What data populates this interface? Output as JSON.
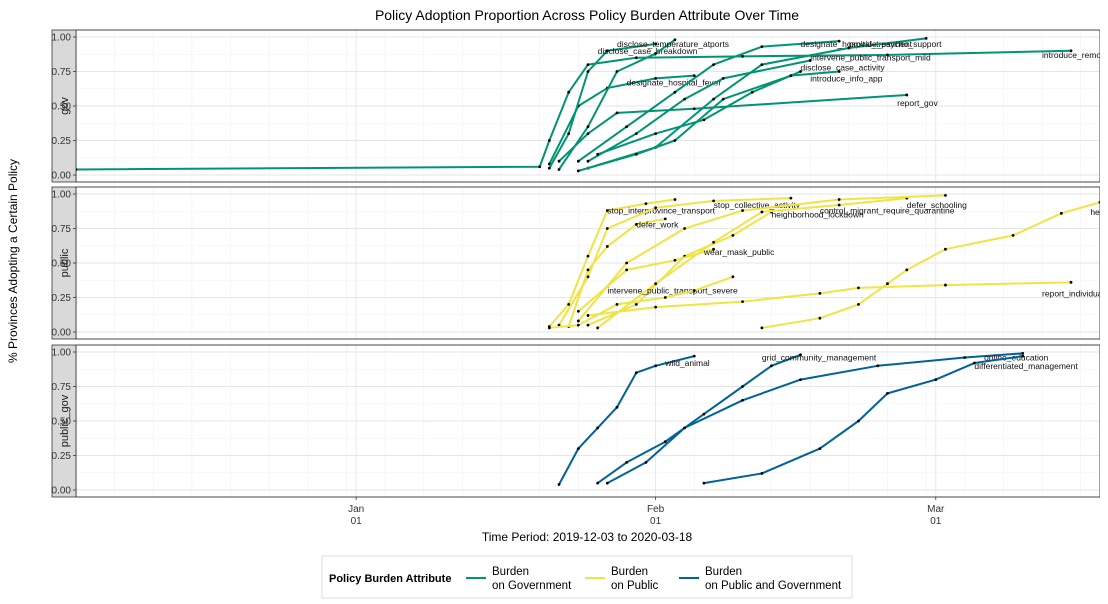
{
  "chart_data": {
    "type": "line",
    "title": "Policy Adoption Proportion Across Policy Burden Attribute Over Time",
    "xlabel": "Time Period: 2019-12-03 to 2020-03-18",
    "ylabel": "% Provinces Adopting a Certain Policy",
    "x_ticks": [
      {
        "date": "2020-01-01",
        "line1": "Jan",
        "line2": "01"
      },
      {
        "date": "2020-02-01",
        "line1": "Feb",
        "line2": "01"
      },
      {
        "date": "2020-03-01",
        "line1": "Mar",
        "line2": "01"
      }
    ],
    "xlim": [
      "2019-12-03",
      "2020-03-18"
    ],
    "ylim": [
      0,
      1
    ],
    "y_ticks": [
      "0.00",
      "0.25",
      "0.50",
      "0.75",
      "1.00"
    ],
    "grid": true,
    "legend_position": "bottom",
    "legend": {
      "title": "Policy Burden Attribute",
      "entries": [
        {
          "line1": "Burden",
          "line2": "on Government",
          "color": "#009473"
        },
        {
          "line1": "Burden",
          "line2": "on Public",
          "color": "#f0e442"
        },
        {
          "line1": "Burden",
          "line2": "on Public and Government",
          "color": "#00619b"
        }
      ]
    },
    "panels": [
      {
        "strip": "gov",
        "color": "#009473",
        "series": [
          {
            "label": "introduce_remote_medical_con",
            "label_at": [
              "2020-03-12",
              0.87
            ],
            "points": [
              [
                "2019-12-03",
                0.04
              ],
              [
                "2020-01-20",
                0.06
              ],
              [
                "2020-01-21",
                0.25
              ],
              [
                "2020-01-23",
                0.6
              ],
              [
                "2020-01-25",
                0.8
              ],
              [
                "2020-01-30",
                0.85
              ],
              [
                "2020-02-10",
                0.86
              ],
              [
                "2020-02-25",
                0.87
              ],
              [
                "2020-03-15",
                0.9
              ]
            ]
          },
          {
            "label": "report_gov",
            "label_at": [
              "2020-02-26",
              0.52
            ],
            "points": [
              [
                "2020-01-22",
                0.1
              ],
              [
                "2020-01-25",
                0.3
              ],
              [
                "2020-01-28",
                0.45
              ],
              [
                "2020-02-05",
                0.48
              ],
              [
                "2020-02-27",
                0.58
              ]
            ]
          },
          {
            "label": "designate_hospital_fever",
            "label_at": [
              "2020-01-29",
              0.67
            ],
            "points": [
              [
                "2020-01-21",
                0.08
              ],
              [
                "2020-01-24",
                0.5
              ],
              [
                "2020-01-27",
                0.63
              ],
              [
                "2020-02-01",
                0.7
              ],
              [
                "2020-02-05",
                0.72
              ]
            ]
          },
          {
            "label": "disclose_case_breakdown",
            "label_at": [
              "2020-01-26",
              0.9
            ],
            "points": [
              [
                "2020-01-21",
                0.05
              ],
              [
                "2020-01-23",
                0.3
              ],
              [
                "2020-01-25",
                0.75
              ],
              [
                "2020-01-27",
                0.9
              ],
              [
                "2020-02-01",
                0.95
              ]
            ]
          },
          {
            "label": "disclose_temperature_atports",
            "label_at": [
              "2020-01-28",
              0.95
            ],
            "points": [
              [
                "2020-01-22",
                0.04
              ],
              [
                "2020-01-25",
                0.35
              ],
              [
                "2020-01-28",
                0.75
              ],
              [
                "2020-02-01",
                0.88
              ],
              [
                "2020-02-03",
                0.98
              ]
            ]
          },
          {
            "label": "designate_hospital_treatment",
            "label_at": [
              "2020-02-16",
              0.95
            ],
            "points": [
              [
                "2020-01-24",
                0.1
              ],
              [
                "2020-01-29",
                0.35
              ],
              [
                "2020-02-03",
                0.6
              ],
              [
                "2020-02-07",
                0.8
              ],
              [
                "2020-02-12",
                0.93
              ],
              [
                "2020-02-20",
                0.97
              ]
            ]
          },
          {
            "label": "provide_psycho_support",
            "label_at": [
              "2020-02-21",
              0.95
            ],
            "points": [
              [
                "2020-01-25",
                0.05
              ],
              [
                "2020-02-01",
                0.2
              ],
              [
                "2020-02-07",
                0.55
              ],
              [
                "2020-02-12",
                0.8
              ],
              [
                "2020-02-21",
                0.92
              ],
              [
                "2020-02-29",
                0.99
              ]
            ]
          },
          {
            "label": "intervene_public_transport_mild",
            "label_at": [
              "2020-02-17",
              0.85
            ],
            "points": [
              [
                "2020-01-25",
                0.1
              ],
              [
                "2020-01-30",
                0.3
              ],
              [
                "2020-02-04",
                0.55
              ],
              [
                "2020-02-08",
                0.7
              ],
              [
                "2020-02-17",
                0.83
              ]
            ]
          },
          {
            "label": "disclose_case_activity",
            "label_at": [
              "2020-02-16",
              0.78
            ],
            "points": [
              [
                "2020-01-26",
                0.15
              ],
              [
                "2020-02-01",
                0.3
              ],
              [
                "2020-02-06",
                0.4
              ],
              [
                "2020-02-11",
                0.6
              ],
              [
                "2020-02-16",
                0.75
              ]
            ]
          },
          {
            "label": "introduce_info_app",
            "label_at": [
              "2020-02-17",
              0.7
            ],
            "points": [
              [
                "2020-01-24",
                0.03
              ],
              [
                "2020-01-30",
                0.15
              ],
              [
                "2020-02-03",
                0.25
              ],
              [
                "2020-02-08",
                0.55
              ],
              [
                "2020-02-15",
                0.72
              ],
              [
                "2020-02-20",
                0.75
              ]
            ]
          }
        ]
      },
      {
        "strip": "public",
        "color": "#f0e442",
        "series": [
          {
            "label": "stop_interprovince_transport",
            "label_at": [
              "2020-01-27",
              0.88
            ],
            "points": [
              [
                "2020-01-21",
                0.04
              ],
              [
                "2020-01-23",
                0.2
              ],
              [
                "2020-01-25",
                0.55
              ],
              [
                "2020-01-27",
                0.88
              ],
              [
                "2020-01-31",
                0.93
              ],
              [
                "2020-02-03",
                0.96
              ]
            ]
          },
          {
            "label": "stop_collective_activity",
            "label_at": [
              "2020-02-07",
              0.92
            ],
            "points": [
              [
                "2020-01-22",
                0.05
              ],
              [
                "2020-01-25",
                0.4
              ],
              [
                "2020-01-27",
                0.75
              ],
              [
                "2020-02-01",
                0.9
              ],
              [
                "2020-02-07",
                0.95
              ],
              [
                "2020-02-15",
                0.97
              ]
            ]
          },
          {
            "label": "neighborhood_lockdown",
            "label_at": [
              "2020-02-13",
              0.85
            ],
            "points": [
              [
                "2020-01-25",
                0.05
              ],
              [
                "2020-01-30",
                0.2
              ],
              [
                "2020-02-04",
                0.55
              ],
              [
                "2020-02-09",
                0.7
              ],
              [
                "2020-02-13",
                0.87
              ]
            ]
          },
          {
            "label": "control_migrant_require_quarantine",
            "label_at": [
              "2020-02-18",
              0.88
            ],
            "points": [
              [
                "2020-01-26",
                0.03
              ],
              [
                "2020-02-01",
                0.35
              ],
              [
                "2020-02-07",
                0.65
              ],
              [
                "2020-02-12",
                0.87
              ],
              [
                "2020-02-20",
                0.92
              ],
              [
                "2020-02-27",
                0.97
              ]
            ]
          },
          {
            "label": "defer_schooling",
            "label_at": [
              "2020-02-27",
              0.92
            ],
            "points": [
              [
                "2020-01-24",
                0.08
              ],
              [
                "2020-01-29",
                0.5
              ],
              [
                "2020-02-04",
                0.75
              ],
              [
                "2020-02-10",
                0.88
              ],
              [
                "2020-02-20",
                0.96
              ],
              [
                "2020-03-02",
                0.99
              ]
            ]
          },
          {
            "label": "defer_work",
            "label_at": [
              "2020-01-30",
              0.78
            ],
            "points": [
              [
                "2020-01-23",
                0.04
              ],
              [
                "2020-01-25",
                0.45
              ],
              [
                "2020-01-27",
                0.62
              ],
              [
                "2020-01-30",
                0.78
              ],
              [
                "2020-02-02",
                0.82
              ]
            ]
          },
          {
            "label": "wear_mask_public",
            "label_at": [
              "2020-02-06",
              0.58
            ],
            "points": [
              [
                "2020-01-24",
                0.15
              ],
              [
                "2020-01-29",
                0.45
              ],
              [
                "2020-02-03",
                0.52
              ],
              [
                "2020-02-07",
                0.6
              ]
            ]
          },
          {
            "label": "intervene_public_transport_severe",
            "label_at": [
              "2020-01-27",
              0.3
            ],
            "points": [
              [
                "2020-01-25",
                0.12
              ],
              [
                "2020-02-01",
                0.18
              ],
              [
                "2020-02-10",
                0.22
              ],
              [
                "2020-02-18",
                0.28
              ],
              [
                "2020-02-22",
                0.32
              ],
              [
                "2020-03-02",
                0.34
              ],
              [
                "2020-03-15",
                0.36
              ]
            ]
          },
          {
            "label": "report_individual",
            "label_at": [
              "2020-03-12",
              0.28
            ],
            "points": [
              [
                "2020-01-21",
                0.03
              ],
              [
                "2020-01-24",
                0.05
              ],
              [
                "2020-01-28",
                0.2
              ],
              [
                "2020-02-02",
                0.25
              ],
              [
                "2020-02-05",
                0.3
              ],
              [
                "2020-02-09",
                0.4
              ]
            ]
          },
          {
            "label": "health_indicator",
            "label_at": [
              "2020-03-17",
              0.87
            ],
            "points": [
              [
                "2020-02-12",
                0.03
              ],
              [
                "2020-02-18",
                0.1
              ],
              [
                "2020-02-22",
                0.2
              ],
              [
                "2020-02-25",
                0.35
              ],
              [
                "2020-02-27",
                0.45
              ],
              [
                "2020-03-02",
                0.6
              ],
              [
                "2020-03-09",
                0.7
              ],
              [
                "2020-03-14",
                0.86
              ],
              [
                "2020-03-18",
                0.94
              ]
            ]
          }
        ]
      },
      {
        "strip": "public_gov",
        "color": "#00619b",
        "series": [
          {
            "label": "wild_animal",
            "label_at": [
              "2020-02-02",
              0.92
            ],
            "points": [
              [
                "2020-01-22",
                0.04
              ],
              [
                "2020-01-24",
                0.3
              ],
              [
                "2020-01-26",
                0.45
              ],
              [
                "2020-01-28",
                0.6
              ],
              [
                "2020-01-30",
                0.85
              ],
              [
                "2020-02-01",
                0.9
              ],
              [
                "2020-02-05",
                0.97
              ]
            ]
          },
          {
            "label": "grid_community_management",
            "label_at": [
              "2020-02-12",
              0.96
            ],
            "points": [
              [
                "2020-01-26",
                0.05
              ],
              [
                "2020-01-29",
                0.2
              ],
              [
                "2020-02-02",
                0.35
              ],
              [
                "2020-02-06",
                0.55
              ],
              [
                "2020-02-10",
                0.75
              ],
              [
                "2020-02-13",
                0.9
              ],
              [
                "2020-02-16",
                0.98
              ]
            ]
          },
          {
            "label": "online_education",
            "label_at": [
              "2020-03-06",
              0.96
            ],
            "points": [
              [
                "2020-01-27",
                0.05
              ],
              [
                "2020-01-31",
                0.2
              ],
              [
                "2020-02-04",
                0.45
              ],
              [
                "2020-02-10",
                0.65
              ],
              [
                "2020-02-16",
                0.8
              ],
              [
                "2020-02-24",
                0.9
              ],
              [
                "2020-03-04",
                0.96
              ],
              [
                "2020-03-10",
                0.99
              ]
            ]
          },
          {
            "label": "differentiated_management",
            "label_at": [
              "2020-03-05",
              0.9
            ],
            "points": [
              [
                "2020-02-06",
                0.05
              ],
              [
                "2020-02-12",
                0.12
              ],
              [
                "2020-02-18",
                0.3
              ],
              [
                "2020-02-22",
                0.5
              ],
              [
                "2020-02-25",
                0.7
              ],
              [
                "2020-03-01",
                0.8
              ],
              [
                "2020-03-05",
                0.92
              ],
              [
                "2020-03-10",
                0.97
              ]
            ]
          }
        ]
      }
    ]
  }
}
